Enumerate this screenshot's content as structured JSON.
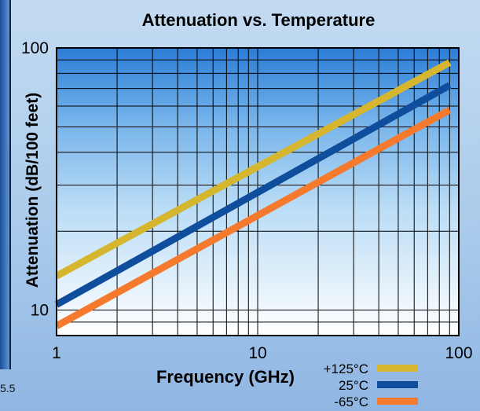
{
  "chart_data": {
    "type": "line",
    "title": "Attenuation vs. Temperature",
    "xlabel": "Frequency (GHz)",
    "ylabel": "Attenuation (dB/100 feet)",
    "x_scale": "log",
    "y_scale": "log",
    "xlim": [
      1,
      100
    ],
    "ylim": [
      8,
      100
    ],
    "x_tick_labels": [
      "1",
      "10",
      "100"
    ],
    "y_tick_labels": [
      "10",
      "100"
    ],
    "grid": true,
    "legend_position": "bottom-right",
    "series": [
      {
        "name": "+125°C",
        "color": "#d6b62e",
        "x": [
          1,
          90
        ],
        "y": [
          13.5,
          88
        ]
      },
      {
        "name": "25°C",
        "color": "#0f4e9c",
        "x": [
          1,
          90
        ],
        "y": [
          10.5,
          72
        ]
      },
      {
        "name": "-65°C",
        "color": "#f57a2e",
        "x": [
          1,
          90
        ],
        "y": [
          8.7,
          58
        ]
      }
    ]
  },
  "left_partial_label": "5.5"
}
